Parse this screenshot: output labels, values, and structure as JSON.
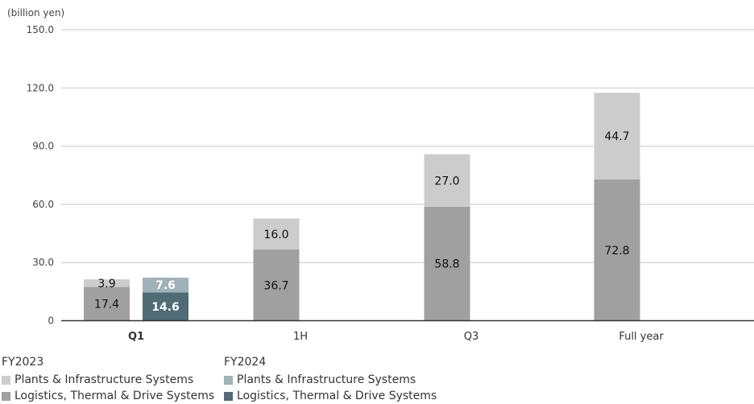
{
  "chart_data": {
    "type": "bar",
    "stacked": true,
    "unit_label": "(billion yen)",
    "categories": [
      "Q1",
      "1H",
      "Q3",
      "Full year"
    ],
    "ylim": [
      0,
      150
    ],
    "yticks": [
      "0",
      "30.0",
      "60.0",
      "90.0",
      "120.0",
      "150.0"
    ],
    "ytick_values": [
      0,
      30,
      60,
      90,
      120,
      150
    ],
    "grid": true,
    "legend_position": "bottom-left",
    "groups": [
      {
        "name": "FY2023",
        "series": [
          {
            "name": "Logistics, Thermal & Drive Systems",
            "values": [
              17.4,
              36.7,
              58.8,
              72.8
            ],
            "labels": [
              "17.4",
              "36.7",
              "58.8",
              "72.8"
            ],
            "color": "#a0a0a0"
          },
          {
            "name": "Plants & Infrastructure Systems",
            "values": [
              3.9,
              16.0,
              27.0,
              44.7
            ],
            "labels": [
              "3.9",
              "16.0",
              "27.0",
              "44.7"
            ],
            "color": "#cccccc"
          }
        ]
      },
      {
        "name": "FY2024",
        "series": [
          {
            "name": "Logistics, Thermal & Drive Systems",
            "values": [
              14.6,
              null,
              null,
              null
            ],
            "labels": [
              "14.6",
              "",
              "",
              ""
            ],
            "color": "#4f6b75"
          },
          {
            "name": "Plants & Infrastructure Systems",
            "values": [
              7.6,
              null,
              null,
              null
            ],
            "labels": [
              "7.6",
              "",
              "",
              ""
            ],
            "color": "#9fb2b8"
          }
        ]
      }
    ],
    "highlight_category": "Q1",
    "highlight_color": "#4f6b75"
  }
}
